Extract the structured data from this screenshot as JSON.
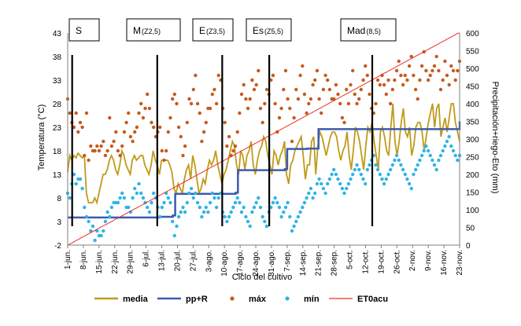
{
  "chart_data": {
    "type": "line",
    "xlabel": "Ciclo del cultivo",
    "ylabel_left": "Temperatura (°C)",
    "ylabel_right": "Precipitación+riego-Eto (mm)",
    "ylim_left": [
      -2,
      43
    ],
    "yticks_left": [
      -2,
      3,
      8,
      13,
      18,
      23,
      28,
      33,
      38,
      43
    ],
    "ylim_right": [
      0,
      600
    ],
    "yticks_right": [
      0,
      50,
      100,
      150,
      200,
      250,
      300,
      350,
      400,
      450,
      500,
      550,
      600
    ],
    "x_start": "1-jun.",
    "x_end": "23-nov.",
    "xticks": [
      "1-jun.",
      "8-jun.",
      "15-jun.",
      "22-jun.",
      "29-jun.",
      "6-jul.",
      "13-jul.",
      "20-jul.",
      "27-jul.",
      "3-ago.",
      "10-ago.",
      "17-ago.",
      "24-ago.",
      "31-ago.",
      "7-sep.",
      "14-sep.",
      "21-sep.",
      "28-sep.",
      "5-oct.",
      "12-oct.",
      "19-oct.",
      "26-oct.",
      "2-nov.",
      "9-nov.",
      "16-nov.",
      "23-nov."
    ],
    "stages": [
      {
        "name": "S",
        "detail": "",
        "divider_date": "3-jun."
      },
      {
        "name": "M",
        "detail": "(Z2,5)",
        "divider_date": "11-jul."
      },
      {
        "name": "E",
        "detail": "(Z3,5)",
        "divider_date": "9-ago."
      },
      {
        "name": "Es",
        "detail": "(Z5,5)",
        "divider_date": "30-ago."
      },
      {
        "name": "Mad",
        "detail": "(8,5)",
        "divider_date": "15-oct."
      }
    ],
    "series": [
      {
        "name": "media",
        "axis": "left",
        "style": "line",
        "color": "#C09A1A",
        "values": [
          13.5,
          17,
          16,
          17,
          16.5,
          17.5,
          17,
          16.5,
          17,
          9,
          7,
          7,
          7,
          8,
          7,
          9,
          11,
          13,
          13,
          14,
          16,
          17,
          16,
          14,
          13,
          15,
          18,
          17,
          15,
          14,
          13,
          16,
          17,
          16,
          16.5,
          17,
          17,
          15,
          14,
          13,
          15,
          18,
          16,
          15,
          13,
          16,
          16,
          16,
          16,
          15,
          13.5,
          10,
          9,
          11,
          10,
          9,
          12,
          14,
          15,
          12,
          17,
          15,
          12,
          9,
          10,
          12,
          11,
          14,
          16,
          15,
          16,
          18,
          15,
          13,
          11,
          13,
          14,
          16,
          18,
          20,
          19,
          15,
          13,
          18,
          17,
          14,
          17,
          18,
          20,
          15,
          13,
          16,
          18,
          19,
          21,
          20,
          17,
          15,
          13,
          18,
          17,
          15,
          17,
          18,
          20,
          13,
          11,
          15,
          16,
          18,
          19,
          20,
          21,
          17,
          12,
          15,
          15,
          20,
          21,
          13,
          19,
          22,
          21,
          19,
          17,
          19,
          21,
          22,
          22,
          21,
          18,
          16,
          18,
          19,
          22,
          17,
          14,
          18,
          23,
          22,
          20,
          17,
          14,
          19,
          23,
          22,
          24,
          20,
          17,
          14,
          22,
          23,
          21,
          18,
          17,
          23,
          28,
          20,
          17,
          20,
          24,
          27,
          22,
          21,
          23,
          17,
          19,
          23,
          24,
          24,
          22,
          18,
          21,
          24,
          26,
          28,
          23,
          27,
          28,
          21,
          23,
          25,
          22,
          25,
          28,
          28,
          24,
          22,
          20
        ]
      },
      {
        "name": "pp+R",
        "axis": "right",
        "style": "step",
        "color": "#3C5BAF",
        "points": [
          [
            "1-jun.",
            78
          ],
          [
            "12-jul.",
            80
          ],
          [
            "18-jul.",
            84
          ],
          [
            "19-jul.",
            145
          ],
          [
            "15-ago.",
            148
          ],
          [
            "16-ago.",
            212
          ],
          [
            "6-sep.",
            215
          ],
          [
            "7-sep.",
            272
          ],
          [
            "16-sep.",
            273
          ],
          [
            "21-sep.",
            328
          ],
          [
            "20-nov.",
            328
          ],
          [
            "23-nov.",
            350
          ]
        ]
      },
      {
        "name": "máx",
        "axis": "left",
        "style": "points",
        "color": "#C65A1E",
        "values": [
          29,
          26,
          24,
          23,
          26,
          22,
          24,
          23,
          17,
          26,
          16,
          19,
          18,
          18,
          19,
          18,
          19,
          20,
          17,
          18,
          25,
          19,
          20,
          22,
          18,
          17,
          19,
          22,
          24,
          26,
          21,
          20,
          22,
          23,
          26,
          28,
          25,
          27,
          30,
          27,
          24,
          23,
          21,
          22,
          23,
          18,
          16,
          18,
          22,
          25,
          29,
          30,
          28,
          23,
          21,
          17,
          19,
          24,
          29,
          28,
          31,
          34,
          28,
          26,
          20,
          22,
          24,
          27,
          27,
          30,
          31,
          28,
          34,
          33,
          27,
          24,
          19,
          21,
          17,
          18,
          19,
          22,
          26,
          30,
          32,
          29,
          27,
          29,
          33,
          31,
          32,
          35,
          27,
          24,
          28,
          31,
          30,
          33,
          34,
          28,
          22,
          25,
          27,
          31,
          35,
          29,
          27,
          20,
          25,
          31,
          29,
          34,
          36,
          30,
          26,
          28,
          29,
          32,
          33,
          35,
          29,
          26,
          31,
          34,
          33,
          31,
          29,
          29,
          32,
          30,
          28,
          25,
          24,
          31,
          28,
          32,
          35,
          30,
          28,
          29,
          31,
          33,
          36,
          34,
          30,
          27,
          26,
          28,
          33,
          32,
          34,
          32,
          30,
          33,
          28,
          31,
          33,
          35,
          37,
          34,
          32,
          34,
          33,
          36,
          38,
          34,
          31,
          29,
          33,
          36,
          39,
          35,
          33,
          34,
          35,
          36,
          38,
          35,
          31,
          33,
          37,
          34,
          32,
          36,
          35,
          33,
          35,
          37
        ]
      },
      {
        "name": "mín",
        "axis": "left",
        "style": "points",
        "color": "#2EB4E6",
        "values": [
          9,
          8,
          11,
          13,
          11,
          12,
          12,
          10,
          6,
          4,
          3,
          1,
          2,
          -1,
          1,
          0,
          0,
          1,
          3,
          5,
          4,
          6,
          7,
          7,
          7,
          8,
          9,
          8,
          6,
          6,
          5,
          8,
          10,
          9,
          11,
          9,
          8,
          7,
          6,
          5,
          7,
          9,
          8,
          6,
          4,
          6,
          7,
          9,
          8,
          7,
          3,
          0,
          2,
          4,
          5,
          6,
          5,
          7,
          9,
          10,
          8,
          9,
          7,
          6,
          4,
          5,
          6,
          5,
          7,
          9,
          8,
          6,
          8,
          9,
          5,
          4,
          3,
          4,
          5,
          6,
          7,
          8,
          7,
          5,
          6,
          4,
          3,
          2,
          5,
          6,
          7,
          8,
          6,
          4,
          3,
          2,
          5,
          6,
          7,
          8,
          7,
          6,
          4,
          5,
          6,
          7,
          4,
          1,
          2,
          3,
          4,
          5,
          6,
          7,
          8,
          9,
          10,
          8,
          9,
          11,
          12,
          11,
          10,
          9,
          11,
          12,
          13,
          14,
          13,
          12,
          11,
          10,
          9,
          10,
          11,
          12,
          13,
          14,
          15,
          14,
          13,
          12,
          11,
          14,
          15,
          16,
          17,
          15,
          14,
          13,
          12,
          11,
          12,
          13,
          14,
          15,
          16,
          17,
          16,
          15,
          14,
          13,
          12,
          11,
          10,
          13,
          14,
          15,
          16,
          17,
          18,
          19,
          18,
          17,
          16,
          15,
          14,
          16,
          17,
          18,
          19,
          20,
          21,
          19,
          18,
          17,
          16,
          17
        ]
      },
      {
        "name": "ET0acu",
        "axis": "right",
        "style": "line",
        "color": "#E8302A",
        "values": [
          0,
          2,
          5,
          7,
          10,
          12,
          15,
          17,
          20,
          22,
          25,
          27,
          30,
          32,
          35,
          37,
          40,
          42,
          45,
          47,
          50,
          52,
          55,
          57,
          59,
          62,
          64,
          67,
          69,
          72,
          74,
          77,
          79,
          82,
          84,
          87,
          89,
          92,
          94,
          97,
          99,
          102,
          104,
          107,
          109,
          112,
          114,
          117,
          119,
          122,
          124,
          127,
          129,
          132,
          134,
          137,
          139,
          142,
          144,
          147,
          149,
          152,
          154,
          157,
          159,
          162,
          164,
          167,
          169,
          172,
          174,
          177,
          179,
          182,
          184,
          187,
          189,
          192,
          194,
          197,
          199,
          202,
          204,
          207,
          209,
          212,
          214,
          217,
          219,
          222,
          224,
          227,
          229,
          232,
          234,
          237,
          239,
          242,
          244,
          247,
          249,
          252,
          254,
          257,
          259,
          262,
          264,
          267,
          269,
          272,
          274,
          277,
          279,
          282,
          284,
          287,
          289,
          292,
          294,
          297,
          299,
          302,
          304,
          307,
          309,
          312,
          314,
          317,
          319,
          322,
          324,
          327,
          329,
          332,
          334,
          337,
          339,
          342,
          344,
          347,
          349,
          352,
          354,
          357,
          359,
          362,
          364,
          367,
          369,
          372,
          374,
          377,
          379,
          382,
          384,
          387,
          389,
          392,
          394,
          397,
          399,
          402,
          404,
          407,
          409,
          412,
          414,
          417,
          419,
          422,
          424,
          427,
          429,
          432,
          434,
          437,
          439,
          442,
          444,
          447,
          449,
          452,
          454,
          457,
          459,
          462,
          464,
          467,
          469,
          472,
          474,
          477,
          479,
          482,
          484,
          487,
          489,
          492,
          494,
          497,
          499,
          502,
          504,
          507,
          509,
          512,
          514,
          517,
          519,
          522,
          524,
          527,
          529,
          532,
          534,
          537,
          539,
          542,
          544,
          547,
          549,
          552,
          554,
          557,
          559,
          562,
          564,
          567,
          569,
          572,
          574,
          577,
          579,
          582,
          584,
          587,
          589,
          592,
          594,
          597,
          599,
          600
        ]
      }
    ],
    "legend": [
      {
        "name": "media",
        "symbol": "line",
        "color": "#C09A1A"
      },
      {
        "name": "pp+R",
        "symbol": "line",
        "color": "#3C5BAF"
      },
      {
        "name": "máx",
        "symbol": "dot",
        "color": "#C65A1E"
      },
      {
        "name": "mín",
        "symbol": "dot",
        "color": "#2EB4E6"
      },
      {
        "name": "ET0acu",
        "symbol": "line",
        "color": "#E8302A"
      }
    ],
    "legend_position": "bottom",
    "grid": false
  }
}
